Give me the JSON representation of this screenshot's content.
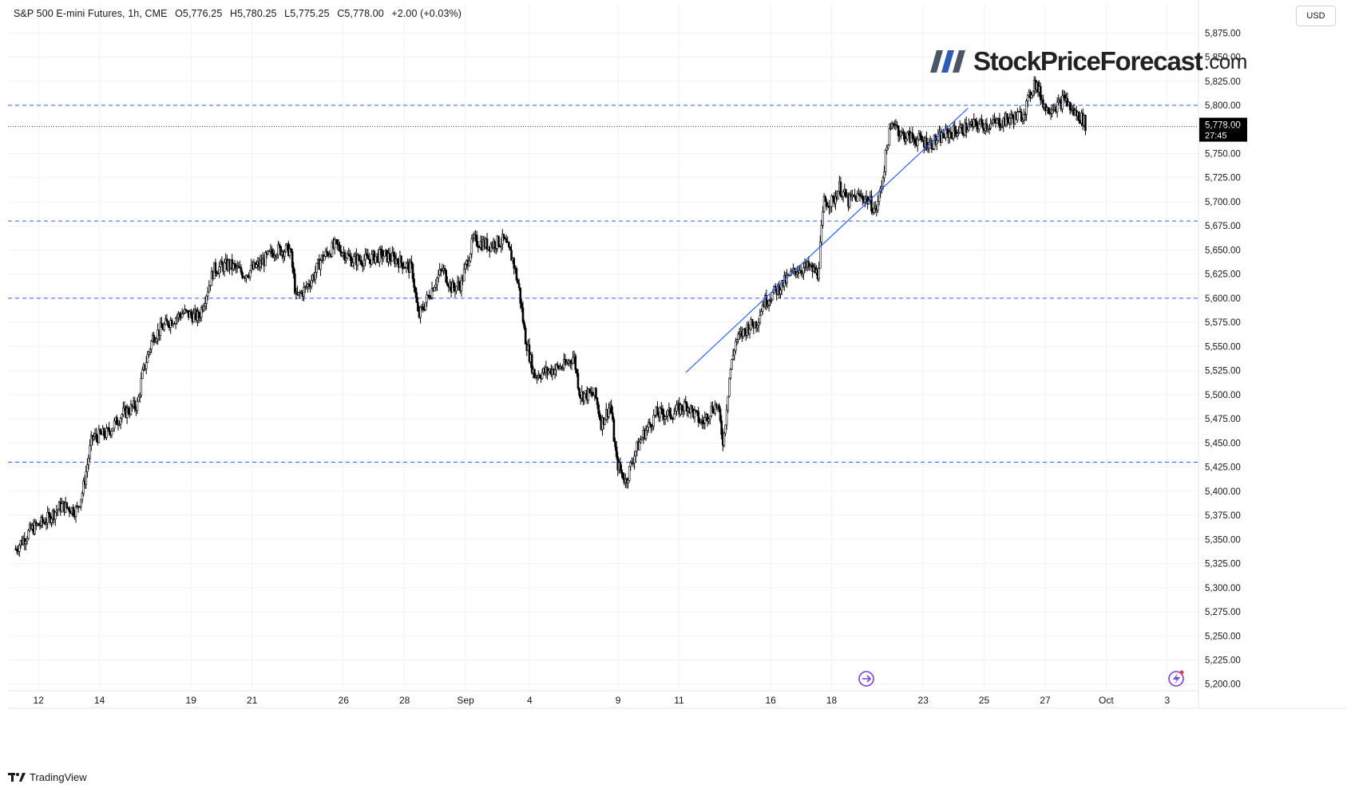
{
  "header": {
    "symbol": "S&P 500 E-mini Futures, 1h, CME",
    "open": "O5,776.25",
    "high": "H5,780.25",
    "low": "L5,775.25",
    "close": "C5,778.00",
    "change": "+2.00 (+0.03%)"
  },
  "currency": "USD",
  "logo": {
    "name": "StockPriceForecast",
    "suffix": ".com"
  },
  "footer": {
    "brand": "TradingView"
  },
  "price_badge": {
    "price": "5,778.00",
    "countdown": "27:45"
  },
  "colors": {
    "candle": "#000000",
    "level_line": "#2962ff",
    "trendline": "#2962ff",
    "event_icon": "#7b3fe4",
    "badge_bg": "#000000"
  },
  "icons": [
    "news-event-icon",
    "lightning-event-icon",
    "tradingview-logo-icon"
  ],
  "chart_data": {
    "type": "candlestick",
    "title": "",
    "y_range": [
      5194,
      5905
    ],
    "y_ticks": [
      5200,
      5225,
      5250,
      5275,
      5300,
      5325,
      5350,
      5375,
      5400,
      5425,
      5450,
      5475,
      5500,
      5525,
      5550,
      5575,
      5600,
      5625,
      5650,
      5675,
      5700,
      5725,
      5750,
      5775,
      5800,
      5825,
      5850,
      5875
    ],
    "y_tick_labels": [
      "5,200.00",
      "5,225.00",
      "5,250.00",
      "5,275.00",
      "5,300.00",
      "5,325.00",
      "5,350.00",
      "5,375.00",
      "5,400.00",
      "5,425.00",
      "5,450.00",
      "5,475.00",
      "5,500.00",
      "5,525.00",
      "5,550.00",
      "5,575.00",
      "5,600.00",
      "5,625.00",
      "5,650.00",
      "5,675.00",
      "5,700.00",
      "5,725.00",
      "5,750.00",
      "5,775.00",
      "5,800.00",
      "5,825.00",
      "5,850.00",
      "5,875.00"
    ],
    "x_labels": [
      {
        "t": 0.75,
        "label": "12"
      },
      {
        "t": 2.75,
        "label": "14"
      },
      {
        "t": 5.75,
        "label": "19"
      },
      {
        "t": 7.75,
        "label": "21"
      },
      {
        "t": 10.75,
        "label": "26"
      },
      {
        "t": 12.75,
        "label": "28"
      },
      {
        "t": 14.75,
        "label": "Sep"
      },
      {
        "t": 16.85,
        "label": "4"
      },
      {
        "t": 19.75,
        "label": "9"
      },
      {
        "t": 21.75,
        "label": "11"
      },
      {
        "t": 24.75,
        "label": "16"
      },
      {
        "t": 26.75,
        "label": "18"
      },
      {
        "t": 29.75,
        "label": "23"
      },
      {
        "t": 31.75,
        "label": "25"
      },
      {
        "t": 33.75,
        "label": "27"
      },
      {
        "t": 35.75,
        "label": "Oct"
      },
      {
        "t": 37.75,
        "label": "3"
      }
    ],
    "x_range": [
      -0.25,
      38.75
    ],
    "horizontal_levels": [
      5800,
      5680,
      5600,
      5430
    ],
    "last_price": 5778,
    "trendline": [
      [
        21.97,
        5523
      ],
      [
        31.22,
        5797
      ]
    ],
    "series": [
      {
        "t": 0.0,
        "p": 5340
      },
      {
        "t": 0.5,
        "p": 5360
      },
      {
        "t": 1.0,
        "p": 5370
      },
      {
        "t": 1.5,
        "p": 5385
      },
      {
        "t": 2.0,
        "p": 5380
      },
      {
        "t": 2.2,
        "p": 5400
      },
      {
        "t": 2.5,
        "p": 5455
      },
      {
        "t": 3.0,
        "p": 5460
      },
      {
        "t": 3.5,
        "p": 5480
      },
      {
        "t": 4.0,
        "p": 5490
      },
      {
        "t": 4.15,
        "p": 5520
      },
      {
        "t": 4.5,
        "p": 5560
      },
      {
        "t": 5.0,
        "p": 5575
      },
      {
        "t": 5.5,
        "p": 5585
      },
      {
        "t": 6.0,
        "p": 5580
      },
      {
        "t": 6.5,
        "p": 5630
      },
      {
        "t": 7.0,
        "p": 5635
      },
      {
        "t": 7.5,
        "p": 5625
      },
      {
        "t": 8.0,
        "p": 5635
      },
      {
        "t": 8.5,
        "p": 5650
      },
      {
        "t": 9.0,
        "p": 5650
      },
      {
        "t": 9.2,
        "p": 5600
      },
      {
        "t": 9.5,
        "p": 5610
      },
      {
        "t": 9.8,
        "p": 5625
      },
      {
        "t": 10.0,
        "p": 5640
      },
      {
        "t": 10.5,
        "p": 5655
      },
      {
        "t": 11.0,
        "p": 5640
      },
      {
        "t": 11.5,
        "p": 5640
      },
      {
        "t": 12.0,
        "p": 5645
      },
      {
        "t": 12.5,
        "p": 5640
      },
      {
        "t": 13.0,
        "p": 5630
      },
      {
        "t": 13.2,
        "p": 5580
      },
      {
        "t": 13.5,
        "p": 5600
      },
      {
        "t": 13.8,
        "p": 5620
      },
      {
        "t": 14.0,
        "p": 5630
      },
      {
        "t": 14.3,
        "p": 5610
      },
      {
        "t": 14.6,
        "p": 5615
      },
      {
        "t": 15.0,
        "p": 5660
      },
      {
        "t": 15.5,
        "p": 5655
      },
      {
        "t": 16.0,
        "p": 5660
      },
      {
        "t": 16.3,
        "p": 5640
      },
      {
        "t": 16.5,
        "p": 5610
      },
      {
        "t": 16.7,
        "p": 5560
      },
      {
        "t": 17.0,
        "p": 5520
      },
      {
        "t": 17.5,
        "p": 5525
      },
      {
        "t": 18.0,
        "p": 5530
      },
      {
        "t": 18.3,
        "p": 5540
      },
      {
        "t": 18.5,
        "p": 5500
      },
      {
        "t": 19.0,
        "p": 5500
      },
      {
        "t": 19.2,
        "p": 5470
      },
      {
        "t": 19.5,
        "p": 5490
      },
      {
        "t": 19.7,
        "p": 5430
      },
      {
        "t": 20.0,
        "p": 5410
      },
      {
        "t": 20.3,
        "p": 5440
      },
      {
        "t": 20.6,
        "p": 5460
      },
      {
        "t": 21.0,
        "p": 5480
      },
      {
        "t": 21.5,
        "p": 5480
      },
      {
        "t": 22.0,
        "p": 5490
      },
      {
        "t": 22.5,
        "p": 5470
      },
      {
        "t": 22.8,
        "p": 5485
      },
      {
        "t": 23.0,
        "p": 5490
      },
      {
        "t": 23.2,
        "p": 5450
      },
      {
        "t": 23.4,
        "p": 5520
      },
      {
        "t": 23.6,
        "p": 5555
      },
      {
        "t": 24.0,
        "p": 5570
      },
      {
        "t": 24.3,
        "p": 5575
      },
      {
        "t": 24.5,
        "p": 5595
      },
      {
        "t": 25.0,
        "p": 5610
      },
      {
        "t": 25.3,
        "p": 5620
      },
      {
        "t": 25.6,
        "p": 5630
      },
      {
        "t": 26.0,
        "p": 5632
      },
      {
        "t": 26.3,
        "p": 5625
      },
      {
        "t": 26.5,
        "p": 5700
      },
      {
        "t": 26.8,
        "p": 5700
      },
      {
        "t": 27.0,
        "p": 5715
      },
      {
        "t": 27.3,
        "p": 5700
      },
      {
        "t": 27.5,
        "p": 5705
      },
      {
        "t": 27.8,
        "p": 5705
      },
      {
        "t": 28.0,
        "p": 5700
      },
      {
        "t": 28.2,
        "p": 5690
      },
      {
        "t": 28.4,
        "p": 5720
      },
      {
        "t": 28.6,
        "p": 5765
      },
      {
        "t": 28.8,
        "p": 5785
      },
      {
        "t": 29.0,
        "p": 5770
      },
      {
        "t": 29.5,
        "p": 5765
      },
      {
        "t": 30.0,
        "p": 5760
      },
      {
        "t": 30.5,
        "p": 5770
      },
      {
        "t": 31.0,
        "p": 5775
      },
      {
        "t": 31.5,
        "p": 5780
      },
      {
        "t": 32.0,
        "p": 5780
      },
      {
        "t": 32.5,
        "p": 5785
      },
      {
        "t": 33.0,
        "p": 5790
      },
      {
        "t": 33.2,
        "p": 5805
      },
      {
        "t": 33.4,
        "p": 5825
      },
      {
        "t": 33.6,
        "p": 5810
      },
      {
        "t": 33.8,
        "p": 5795
      },
      {
        "t": 34.0,
        "p": 5800
      },
      {
        "t": 34.2,
        "p": 5800
      },
      {
        "t": 34.4,
        "p": 5808
      },
      {
        "t": 34.6,
        "p": 5795
      },
      {
        "t": 34.8,
        "p": 5790
      },
      {
        "t": 35.0,
        "p": 5785
      },
      {
        "t": 35.1,
        "p": 5778
      }
    ]
  }
}
